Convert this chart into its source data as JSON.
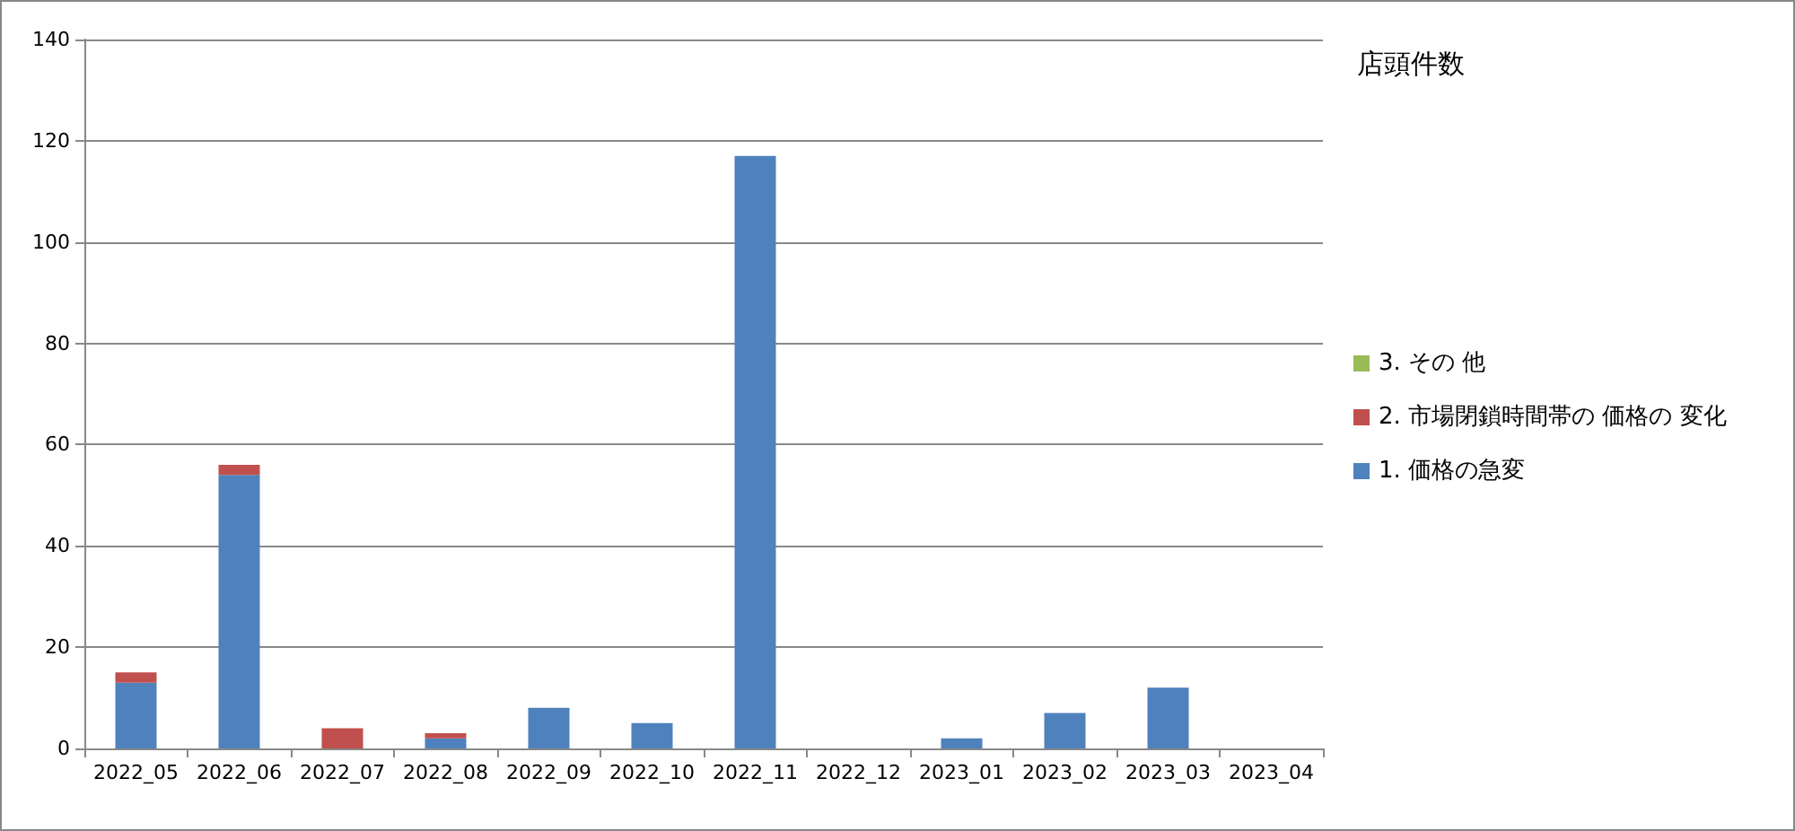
{
  "chart_data": {
    "type": "bar",
    "stacked": true,
    "legend_title": "店頭件数",
    "legend": "right",
    "grid": "y",
    "categories": [
      "2022_05",
      "2022_06",
      "2022_07",
      "2022_08",
      "2022_09",
      "2022_10",
      "2022_11",
      "2022_12",
      "2023_01",
      "2023_02",
      "2023_03",
      "2023_04"
    ],
    "series": [
      {
        "name": "1. 価格の急変",
        "color": "#4f81bd",
        "values": [
          13,
          54,
          0,
          2,
          8,
          5,
          117,
          0,
          2,
          7,
          12,
          0
        ]
      },
      {
        "name": "2. 市場閉鎖時間帯の 価格の 変化",
        "color": "#c0504d",
        "values": [
          2,
          2,
          4,
          1,
          0,
          0,
          0,
          0,
          0,
          0,
          0,
          0
        ]
      },
      {
        "name": "3. その 他",
        "color": "#9bbb59",
        "values": [
          0,
          0,
          0,
          0,
          0,
          0,
          0,
          0,
          0,
          0,
          0,
          0
        ]
      }
    ],
    "ylim": [
      0,
      140
    ],
    "yticks": [
      0,
      20,
      40,
      60,
      80,
      100,
      120,
      140
    ]
  }
}
